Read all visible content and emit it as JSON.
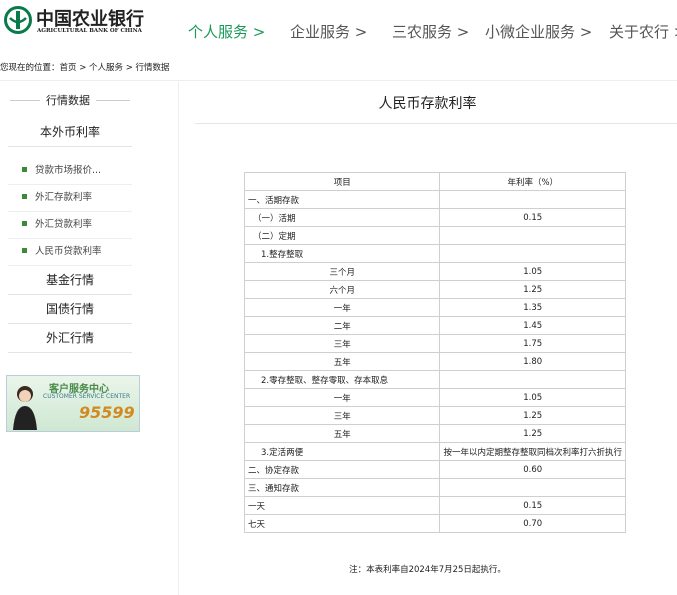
{
  "header": {
    "logo_cn": "中国农业银行",
    "logo_en": "AGRICULTURAL BANK OF CHINA",
    "nav": [
      "个人服务 >",
      "企业服务 >",
      "三农服务 >",
      "小微企业服务 >",
      "关于农行 >"
    ]
  },
  "breadcrumb": "您现在的位置：首页 > 个人服务 > 行情数据",
  "sidebar": {
    "heading": "行情数据",
    "section": "本外币利率",
    "subitems": [
      "贷款市场报价...",
      "外汇存款利率",
      "外汇贷款利率",
      "人民币贷款利率"
    ],
    "items": [
      "基金行情",
      "国债行情",
      "外汇行情"
    ],
    "banner": {
      "title": "客户服务中心",
      "subtitle": "CUSTOMER SERVICE CENTER",
      "phone": "95599"
    }
  },
  "main": {
    "title": "人民币存款利率",
    "table": {
      "columns": [
        "项目",
        "年利率（%）"
      ],
      "rows": [
        [
          "一、活期存款"
        ],
        [
          "（一）活期",
          "0.15"
        ],
        [
          "（二）定期"
        ],
        [
          "1.整存整取"
        ],
        [
          "三个月",
          "1.05"
        ],
        [
          "六个月",
          "1.25"
        ],
        [
          "一年",
          "1.35"
        ],
        [
          "二年",
          "1.45"
        ],
        [
          "三年",
          "1.75"
        ],
        [
          "五年",
          "1.80"
        ],
        [
          "2.零存整取、整存零取、存本取息"
        ],
        [
          "一年",
          "1.05"
        ],
        [
          "三年",
          "1.25"
        ],
        [
          "五年",
          "1.25"
        ],
        [
          "3.定活两便",
          "按一年以内定期整存整取同档次利率打六折执行"
        ],
        [
          "二、协定存款",
          "0.60"
        ],
        [
          "三、通知存款"
        ],
        [
          "一天",
          "0.15"
        ],
        [
          "七天",
          "0.70"
        ]
      ]
    },
    "note": "注：本表利率自2024年7月25日起执行。"
  }
}
